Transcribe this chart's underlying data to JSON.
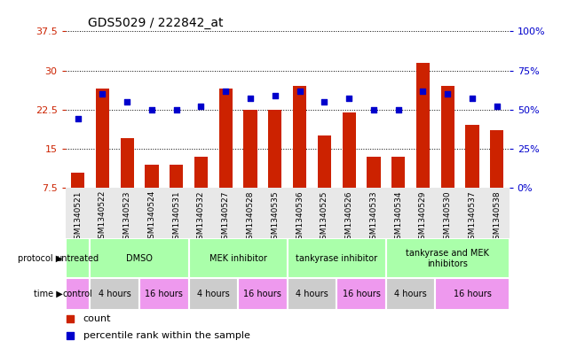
{
  "title": "GDS5029 / 222842_at",
  "samples": [
    "GSM1340521",
    "GSM1340522",
    "GSM1340523",
    "GSM1340524",
    "GSM1340531",
    "GSM1340532",
    "GSM1340527",
    "GSM1340528",
    "GSM1340535",
    "GSM1340536",
    "GSM1340525",
    "GSM1340526",
    "GSM1340533",
    "GSM1340534",
    "GSM1340529",
    "GSM1340530",
    "GSM1340537",
    "GSM1340538"
  ],
  "counts": [
    10.5,
    26.5,
    17.0,
    12.0,
    12.0,
    13.5,
    26.5,
    22.5,
    22.5,
    27.0,
    17.5,
    22.0,
    13.5,
    13.5,
    31.5,
    27.0,
    19.5,
    18.5
  ],
  "percentiles": [
    44,
    60,
    55,
    50,
    50,
    52,
    62,
    57,
    59,
    62,
    55,
    57,
    50,
    50,
    62,
    60,
    57,
    52
  ],
  "ymin": 7.5,
  "ymax": 37.5,
  "yticks": [
    7.5,
    15.0,
    22.5,
    30.0,
    37.5
  ],
  "ytick_labels": [
    "7.5",
    "15",
    "22.5",
    "30",
    "37.5"
  ],
  "right_yticks": [
    0,
    25,
    50,
    75,
    100
  ],
  "protocol_groups": [
    {
      "label": "untreated",
      "start": 0,
      "end": 1,
      "color": "#aaffaa"
    },
    {
      "label": "DMSO",
      "start": 1,
      "end": 5,
      "color": "#aaffaa"
    },
    {
      "label": "MEK inhibitor",
      "start": 5,
      "end": 9,
      "color": "#aaffaa"
    },
    {
      "label": "tankyrase inhibitor",
      "start": 9,
      "end": 13,
      "color": "#aaffaa"
    },
    {
      "label": "tankyrase and MEK\ninhibitors",
      "start": 13,
      "end": 18,
      "color": "#aaffaa"
    }
  ],
  "time_groups": [
    {
      "label": "control",
      "start": 0,
      "end": 1,
      "color": "#ee99ee"
    },
    {
      "label": "4 hours",
      "start": 1,
      "end": 3,
      "color": "#cccccc"
    },
    {
      "label": "16 hours",
      "start": 3,
      "end": 5,
      "color": "#ee99ee"
    },
    {
      "label": "4 hours",
      "start": 5,
      "end": 7,
      "color": "#cccccc"
    },
    {
      "label": "16 hours",
      "start": 7,
      "end": 9,
      "color": "#ee99ee"
    },
    {
      "label": "4 hours",
      "start": 9,
      "end": 11,
      "color": "#cccccc"
    },
    {
      "label": "16 hours",
      "start": 11,
      "end": 13,
      "color": "#ee99ee"
    },
    {
      "label": "4 hours",
      "start": 13,
      "end": 15,
      "color": "#cccccc"
    },
    {
      "label": "16 hours",
      "start": 15,
      "end": 18,
      "color": "#ee99ee"
    }
  ],
  "bar_color": "#cc2200",
  "dot_color": "#0000cc",
  "bg_color": "#ffffff",
  "label_color_left": "#cc2200",
  "label_color_right": "#0000cc"
}
